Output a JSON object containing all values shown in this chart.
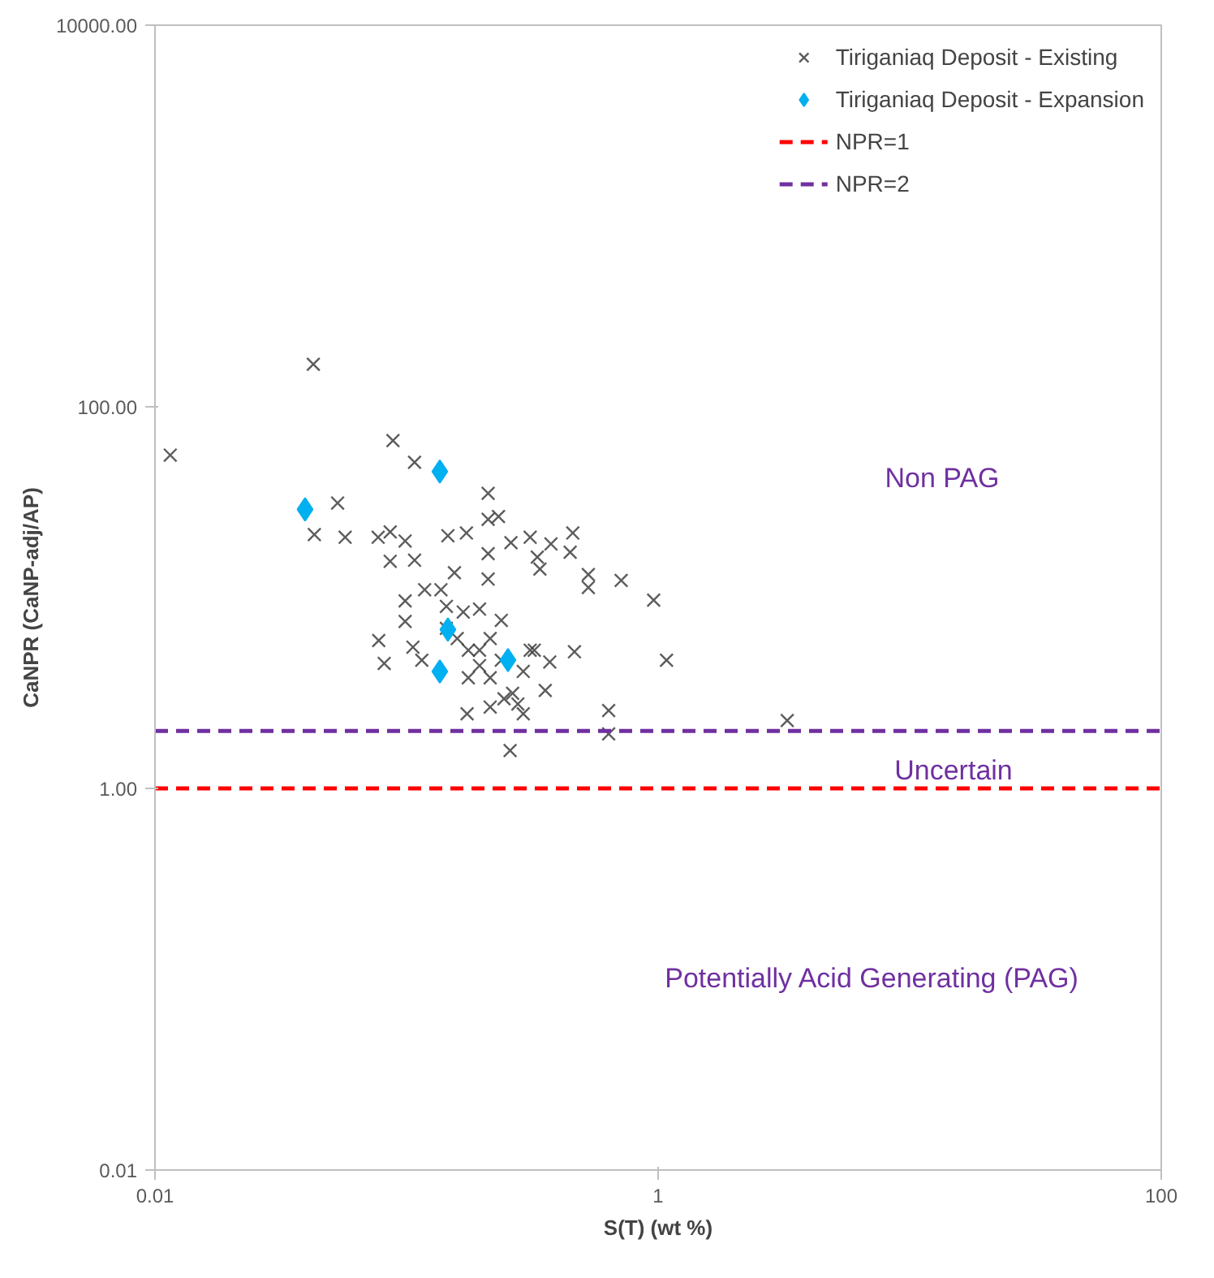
{
  "chart_data": {
    "type": "scatter",
    "xlabel": "S(T) (wt %)",
    "ylabel": "CaNPR (CaNP-adj/AP)",
    "log": "xy",
    "xlim": [
      0.01,
      100
    ],
    "ylim": [
      0.01,
      10000
    ],
    "xticks": [
      0.01,
      1,
      100
    ],
    "yticks": [
      {
        "value": 0.01,
        "label": "0.01"
      },
      {
        "value": 1,
        "label": "1.00"
      },
      {
        "value": 100,
        "label": "100.00"
      },
      {
        "value": 10000,
        "label": "10000.00"
      }
    ],
    "grid": false,
    "legend": "top right",
    "series": [
      {
        "name": "Tiriganiaq Deposit - Existing",
        "color": "#404040",
        "marker": "cross",
        "x": [
          0.0426,
          0.0115,
          0.0883,
          0.1076,
          0.0532,
          0.043,
          0.057,
          0.0771,
          0.0861,
          0.0987,
          0.0861,
          0.1076,
          0.146,
          0.173,
          0.211,
          0.211,
          0.232,
          0.211,
          0.26,
          0.31,
          0.375,
          0.458,
          0.447,
          0.331,
          0.339,
          0.155,
          0.211,
          0.528,
          0.528,
          0.713,
          0.96,
          1.08,
          0.465,
          0.371,
          0.31,
          0.636,
          0.636,
          3.26,
          0.258,
          0.174,
          0.215,
          0.291,
          0.244,
          0.356,
          0.264,
          0.0775,
          0.0815,
          0.106,
          0.0987,
          0.0987,
          0.118,
          0.137,
          0.144,
          0.115,
          0.168,
          0.195,
          0.238,
          0.176,
          0.195,
          0.215,
          0.176,
          0.159,
          0.291,
          0.322,
          0.144,
          0.277,
          0.195,
          0.238,
          0.215
        ],
        "values": [
          167,
          55.8,
          66.5,
          51.2,
          31.3,
          21.4,
          20.7,
          20.7,
          22.1,
          19.8,
          15.5,
          15.7,
          21.1,
          21.8,
          35.2,
          25.7,
          26.6,
          17,
          19.4,
          20.7,
          19.1,
          21.8,
          17.3,
          16.3,
          14.1,
          13.5,
          12.5,
          13.2,
          11.3,
          12.3,
          9.7,
          4.7,
          5.2,
          4.6,
          5.3,
          2.56,
          1.93,
          2.27,
          1.58,
          2.46,
          2.67,
          2.46,
          2.95,
          3.26,
          3.15,
          5.96,
          4.52,
          5.5,
          9.6,
          7.5,
          11,
          11,
          9,
          4.7,
          8.4,
          8.7,
          7.6,
          5.3,
          4.4,
          3.8,
          3.8,
          6.1,
          4.1,
          5.3,
          6.9,
          2.77,
          5.3,
          4.7,
          6.1
        ]
      },
      {
        "name": "Tiriganiaq Deposit - Expansion",
        "color": "#00b0f0",
        "marker": "diamond",
        "x": [
          0.1356,
          0.0395,
          0.146,
          0.1356,
          0.253
        ],
        "values": [
          45.8,
          29,
          6.8,
          4.1,
          4.7
        ]
      }
    ],
    "ref_lines": [
      {
        "axis": "y",
        "value": 1,
        "label": "NPR=1",
        "color": "#ff0000",
        "line_style": "dashed"
      },
      {
        "axis": "y",
        "value": 2,
        "label": "NPR=2",
        "color": "#7030a0",
        "line_style": "dashed"
      }
    ],
    "annotations": [
      "Non PAG",
      "Uncertain",
      "Potentially Acid Generating (PAG)"
    ]
  }
}
